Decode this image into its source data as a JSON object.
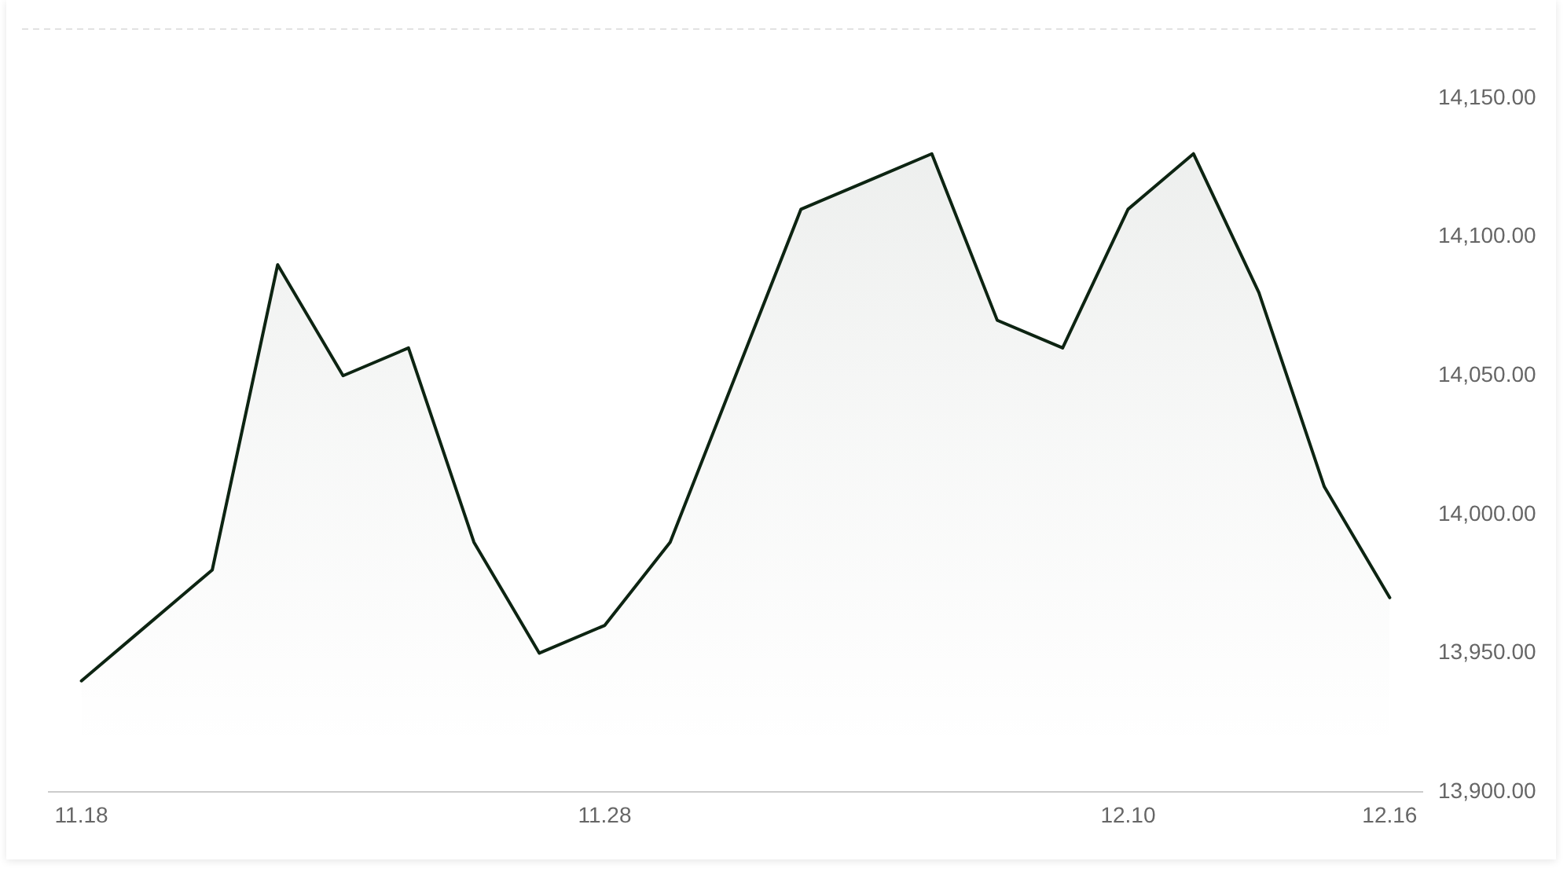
{
  "chart_data": {
    "type": "area",
    "categories": [
      "11.18",
      null,
      null,
      null,
      null,
      null,
      null,
      null,
      "11.28",
      null,
      null,
      null,
      null,
      null,
      null,
      null,
      "12.10",
      null,
      null,
      null,
      "12.16"
    ],
    "series": [
      {
        "color": "#0d2412",
        "values": [
          13940,
          13960,
          13980,
          14090,
          14050,
          14060,
          13990,
          13950,
          13960,
          13990,
          14050,
          14110,
          14120,
          14130,
          14070,
          14060,
          14110,
          14130,
          14080,
          14010,
          13970
        ]
      }
    ],
    "ylim": [
      13900,
      14175
    ],
    "yticks": [
      {
        "value": 13900,
        "label": "13,900.00"
      },
      {
        "value": 13950,
        "label": "13,950.00"
      },
      {
        "value": 14000,
        "label": "14,000.00"
      },
      {
        "value": 14050,
        "label": "14,050.00"
      },
      {
        "value": 14100,
        "label": "14,100.00"
      },
      {
        "value": 14150,
        "label": "14,150.00"
      }
    ],
    "grid": false,
    "legend": false,
    "marker": "none",
    "line_style": "solid"
  }
}
